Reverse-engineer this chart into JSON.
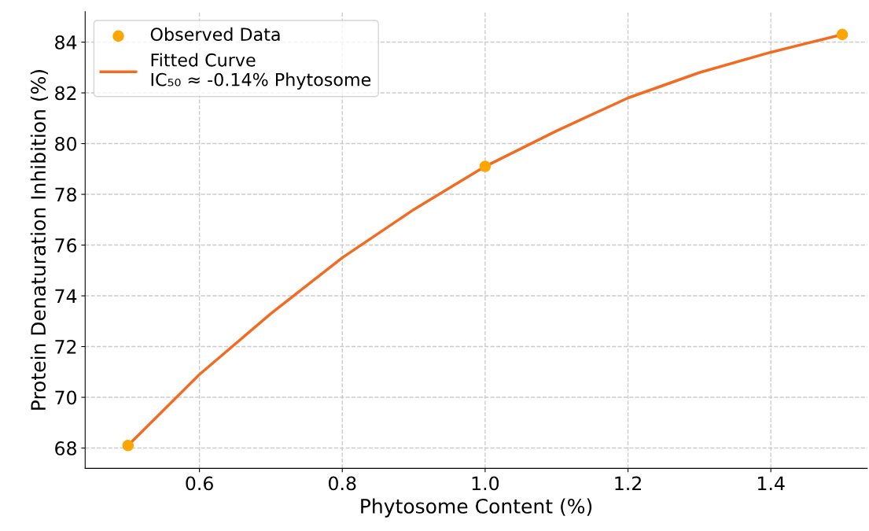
{
  "chart_data": {
    "type": "line",
    "xlabel": "Phytosome Content (%)",
    "ylabel": "Protein Denaturation Inhibition (%)",
    "series": [
      {
        "name": "Observed Data",
        "type": "scatter",
        "color": "#ffa500",
        "marker": "circle",
        "x": [
          0.5,
          1.0,
          1.5
        ],
        "values": [
          68.1,
          79.1,
          84.3
        ]
      },
      {
        "name": "Fitted Curve\nIC₅₀ ≈ -0.14% Phytosome",
        "color": "#f26b21",
        "line_style": "solid",
        "x": [
          0.5,
          0.6,
          0.7,
          0.8,
          0.9,
          1.0,
          1.1,
          1.2,
          1.3,
          1.4,
          1.5
        ],
        "values": [
          68.1,
          70.9,
          73.3,
          75.5,
          77.4,
          79.1,
          80.5,
          81.8,
          82.8,
          83.6,
          84.3
        ]
      }
    ],
    "xlim": [
      0.44,
      1.535
    ],
    "ylim": [
      67.2,
      85.2
    ],
    "xticks": [
      {
        "value": 0.6,
        "label": "0.6"
      },
      {
        "value": 0.8,
        "label": "0.8"
      },
      {
        "value": 1.0,
        "label": "1.0"
      },
      {
        "value": 1.2,
        "label": "1.2"
      },
      {
        "value": 1.4,
        "label": "1.4"
      }
    ],
    "yticks": [
      68,
      70,
      72,
      74,
      76,
      78,
      80,
      82,
      84
    ],
    "grid": true,
    "legend": "top left"
  }
}
